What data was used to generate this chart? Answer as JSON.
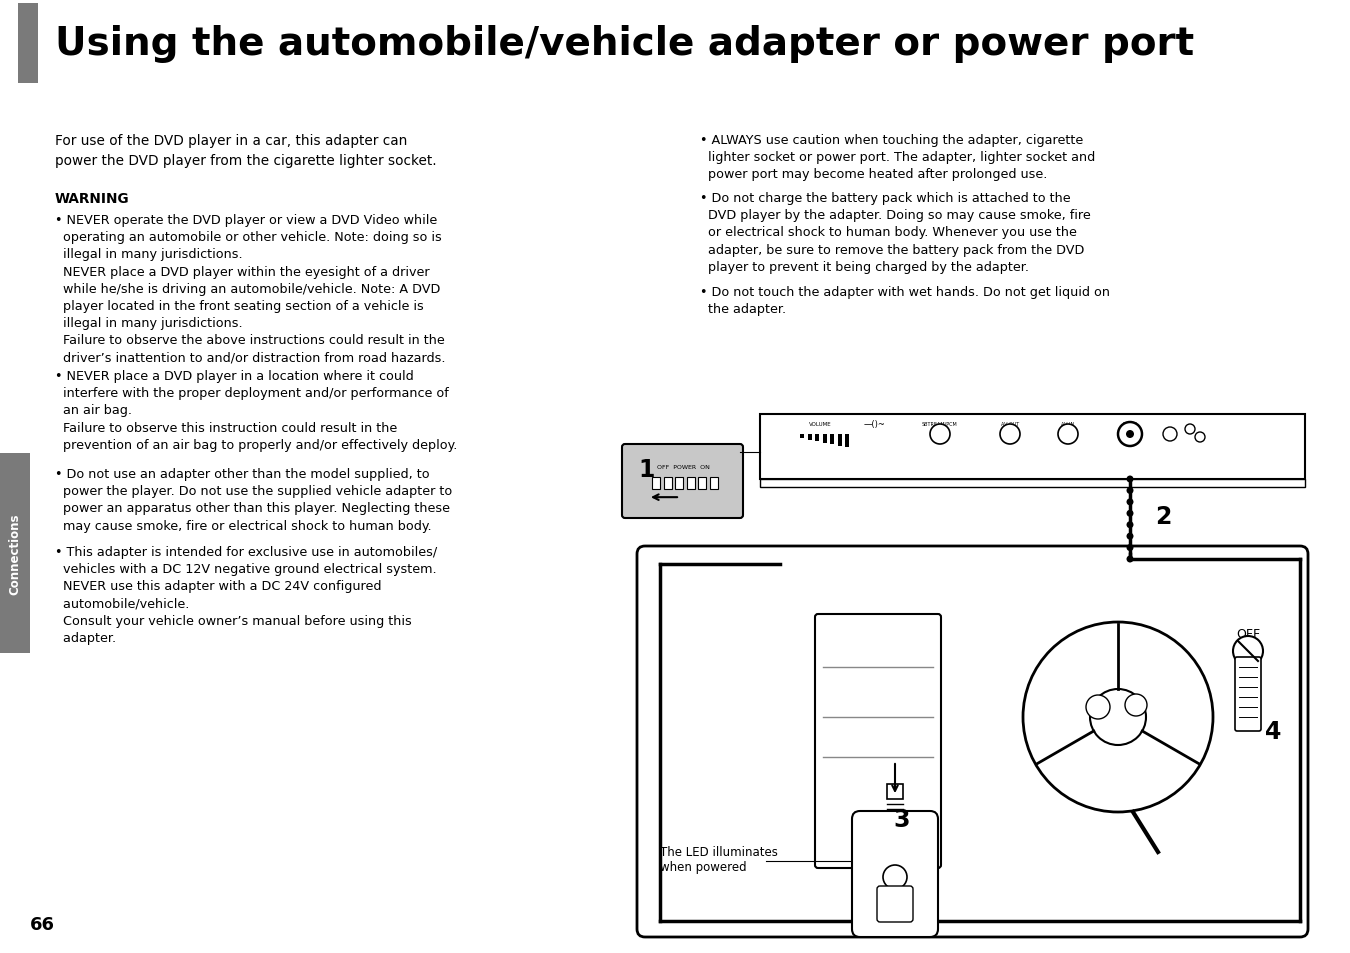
{
  "title": "Using the automobile/vehicle adapter or power port",
  "page_number": "66",
  "section_label": "Connections",
  "bg_color": "#ffffff",
  "header_bar_color": "#7a7a7a",
  "left_col_intro": "For use of the DVD player in a car, this adapter can\npower the DVD player from the cigarette lighter socket.",
  "warning_label": "WARNING",
  "bullet1": "• NEVER operate the DVD player or view a DVD Video while\n  operating an automobile or other vehicle. Note: doing so is\n  illegal in many jurisdictions.\n  NEVER place a DVD player within the eyesight of a driver\n  while he/she is driving an automobile/vehicle. Note: A DVD\n  player located in the front seating section of a vehicle is\n  illegal in many jurisdictions.\n  Failure to observe the above instructions could result in the\n  driver’s inattention to and/or distraction from road hazards.",
  "bullet2": "• NEVER place a DVD player in a location where it could\n  interfere with the proper deployment and/or performance of\n  an air bag.\n  Failure to observe this instruction could result in the\n  prevention of an air bag to properly and/or effectively deploy.",
  "bullet3": "• Do not use an adapter other than the model supplied, to\n  power the player. Do not use the supplied vehicle adapter to\n  power an apparatus other than this player. Neglecting these\n  may cause smoke, fire or electrical shock to human body.",
  "bullet4": "• This adapter is intended for exclusive use in automobiles/\n  vehicles with a DC 12V negative ground electrical system.\n  NEVER use this adapter with a DC 24V configured\n  automobile/vehicle.\n  Consult your vehicle owner’s manual before using this\n  adapter.",
  "rbullet1": "• ALWAYS use caution when touching the adapter, cigarette\n  lighter socket or power port. The adapter, lighter socket and\n  power port may become heated after prolonged use.",
  "rbullet2": "• Do not charge the battery pack which is attached to the\n  DVD player by the adapter. Doing so may cause smoke, fire\n  or electrical shock to human body. Whenever you use the\n  adapter, be sure to remove the battery pack from the DVD\n  player to prevent it being charged by the adapter.",
  "rbullet3": "• Do not touch the adapter with wet hands. Do not get liquid on\n  the adapter.",
  "led_label": "The LED illuminates\nwhen powered"
}
